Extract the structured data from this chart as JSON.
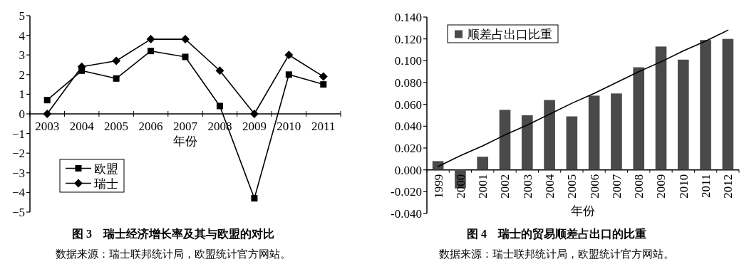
{
  "chart_data": [
    {
      "type": "line",
      "title": "图 3　瑞士经济增长率及其与欧盟的对比",
      "xlabel": "年份",
      "annotations": [
        "数据来源：瑞士联邦统计局，欧盟统计官方网站。"
      ],
      "categories": [
        "2003",
        "2004",
        "2005",
        "2006",
        "2007",
        "2008",
        "2009",
        "2010",
        "2011"
      ],
      "series": [
        {
          "name": "欧盟",
          "color": "#000000",
          "marker": "square",
          "values": [
            0.7,
            2.2,
            1.8,
            3.2,
            2.9,
            0.4,
            -4.3,
            2.0,
            1.5
          ]
        },
        {
          "name": "瑞士",
          "color": "#000000",
          "marker": "diamond",
          "values": [
            0.0,
            2.4,
            2.7,
            3.8,
            3.8,
            2.2,
            0.0,
            3.0,
            1.9
          ]
        }
      ],
      "ylim": [
        -5,
        5
      ],
      "yticks": [
        -5,
        -4,
        -3,
        -2,
        -1,
        0,
        1,
        2,
        3,
        4,
        5
      ],
      "legend": "bottom left"
    },
    {
      "type": "bar",
      "title": "图 4　瑞士的贸易顺差占出口的比重",
      "xlabel": "年份",
      "annotations": [
        "数据来源：瑞士联邦统计局，欧盟统计官方网站。"
      ],
      "categories": [
        "1999",
        "2000",
        "2001",
        "2002",
        "2003",
        "2004",
        "2005",
        "2006",
        "2007",
        "2008",
        "2009",
        "2010",
        "2011",
        "2012"
      ],
      "series": [
        {
          "name": "顺差占出口比重",
          "color": "#4a4a4a",
          "values": [
            0.008,
            -0.017,
            0.012,
            0.055,
            0.05,
            0.064,
            0.049,
            0.068,
            0.07,
            0.094,
            0.113,
            0.101,
            0.119,
            0.12
          ]
        },
        {
          "type": "line",
          "color": "#000000",
          "values": [
            0.003,
            0.013,
            0.022,
            0.032,
            0.041,
            0.051,
            0.061,
            0.07,
            0.08,
            0.09,
            0.099,
            0.109,
            0.118,
            0.128
          ]
        }
      ],
      "ylim": [
        -0.04,
        0.14
      ],
      "yticks": [
        {
          "value": -0.04,
          "label": "-0.040"
        },
        {
          "value": -0.02,
          "label": "-0.020"
        },
        {
          "value": 0,
          "label": "0.000"
        },
        {
          "value": 0.02,
          "label": "0.020"
        },
        {
          "value": 0.04,
          "label": "0.040"
        },
        {
          "value": 0.06,
          "label": "0.060"
        },
        {
          "value": 0.08,
          "label": "0.080"
        },
        {
          "value": 0.1,
          "label": "0.100"
        },
        {
          "value": 0.12,
          "label": "0.120"
        },
        {
          "value": 0.14,
          "label": "0.140"
        }
      ],
      "legend": "top left"
    }
  ]
}
